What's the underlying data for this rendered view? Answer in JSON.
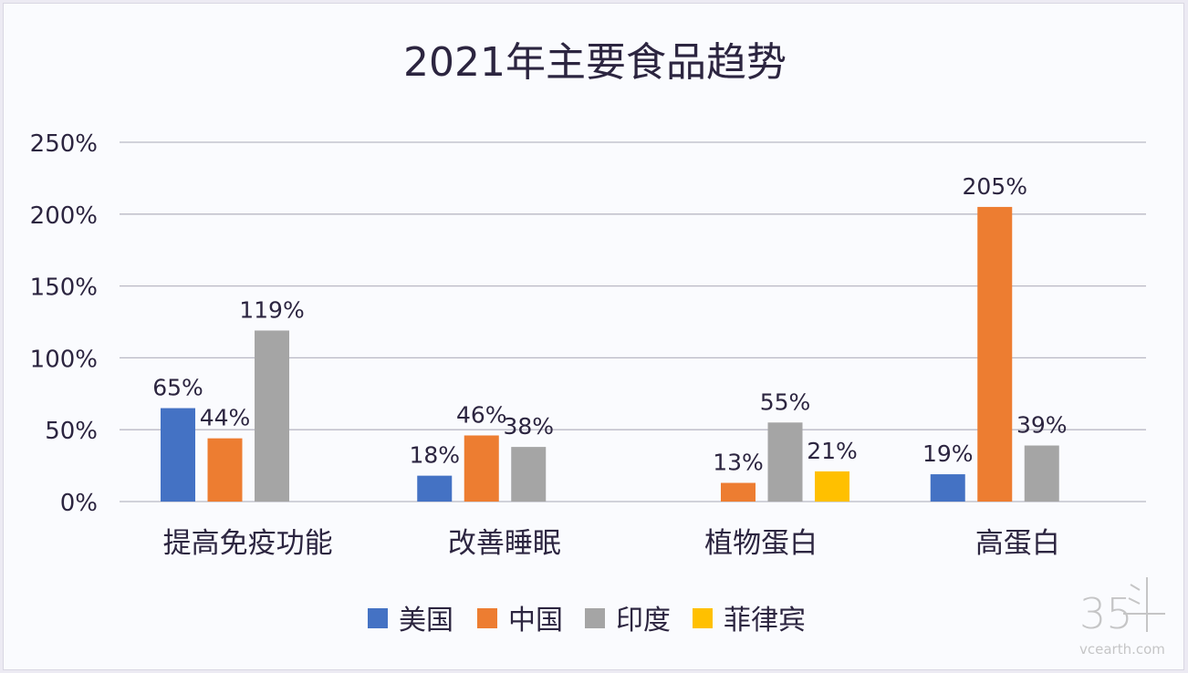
{
  "chart_data": {
    "type": "bar",
    "title": "2021年主要食品趋势",
    "xlabel": "",
    "ylabel": "",
    "ylim": [
      0,
      250
    ],
    "yticks": [
      "0%",
      "50%",
      "100%",
      "150%",
      "200%",
      "250%"
    ],
    "grid": true,
    "legend_position": "bottom",
    "categories": [
      "提高免疫功能",
      "改善睡眠",
      "植物蛋白",
      "高蛋白"
    ],
    "series": [
      {
        "name": "美国",
        "color": "#4472c4",
        "values": [
          65,
          18,
          null,
          19
        ],
        "labels": [
          "65%",
          "18%",
          "",
          "19%"
        ]
      },
      {
        "name": "中国",
        "color": "#ed7d31",
        "values": [
          44,
          46,
          13,
          205
        ],
        "labels": [
          "44%",
          "46%",
          "13%",
          "205%"
        ]
      },
      {
        "name": "印度",
        "color": "#a5a5a5",
        "values": [
          119,
          38,
          55,
          39
        ],
        "labels": [
          "119%",
          "38%",
          "55%",
          "39%"
        ]
      },
      {
        "name": "菲律宾",
        "color": "#ffc000",
        "values": [
          null,
          null,
          21,
          null
        ],
        "labels": [
          "",
          "",
          "21%",
          ""
        ]
      }
    ]
  },
  "watermark": {
    "logo": "35斗",
    "site": "vcearth.com"
  }
}
